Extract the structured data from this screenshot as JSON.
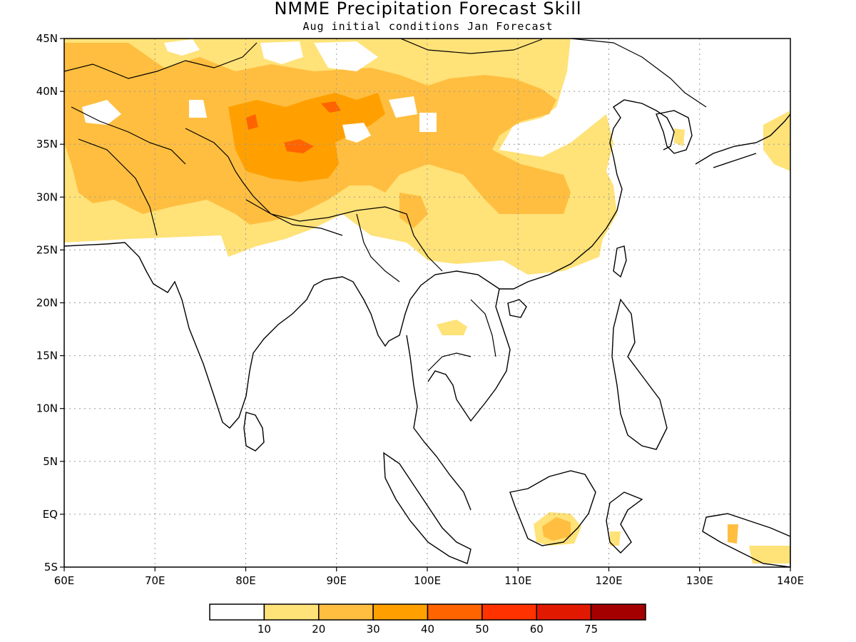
{
  "title": "NMME Precipitation Forecast Skill",
  "subtitle": "Aug initial conditions  Jan Forecast",
  "map": {
    "lon_range": [
      60,
      140
    ],
    "lat_range": [
      -5,
      45
    ],
    "x_ticks": [
      60,
      70,
      80,
      90,
      100,
      110,
      120,
      130,
      140
    ],
    "y_ticks": [
      -5,
      0,
      5,
      10,
      15,
      20,
      25,
      30,
      35,
      40,
      45
    ],
    "x_tick_labels": [
      "60E",
      "70E",
      "80E",
      "90E",
      "100E",
      "110E",
      "120E",
      "130E",
      "140E"
    ],
    "y_tick_labels": [
      "5S",
      "EQ",
      "5N",
      "10N",
      "15N",
      "20N",
      "25N",
      "30N",
      "35N",
      "40N",
      "45N"
    ],
    "grid": "dotted"
  },
  "legend": {
    "labels": [
      "10",
      "20",
      "30",
      "40",
      "50",
      "60",
      "75"
    ],
    "colors": [
      "#ffffff",
      "#ffe278",
      "#ffbe40",
      "#ffa000",
      "#ff6400",
      "#ff3200",
      "#e11900",
      "#a50000"
    ]
  }
}
